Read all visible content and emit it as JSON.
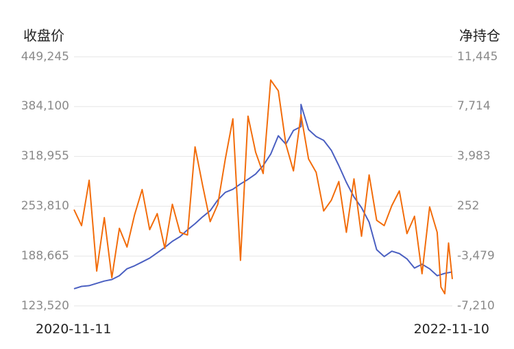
{
  "chart_data": {
    "type": "line",
    "x_start": "2020-11-11",
    "x_end": "2022-11-10",
    "left_axis": {
      "title": "收盘价",
      "ticks": [
        "449,245",
        "384,100",
        "318,955",
        "253,810",
        "188,665",
        "123,520"
      ],
      "range": [
        123520,
        449245
      ]
    },
    "right_axis": {
      "title": "净持仓",
      "ticks": [
        "11,445",
        "7,714",
        "3,983",
        "252",
        "-3,479",
        "-7,210"
      ],
      "range": [
        -7210,
        11445
      ]
    },
    "grid": true,
    "series": [
      {
        "axis": "left",
        "color": "#4a5fc1",
        "x": [
          0,
          0.02,
          0.04,
          0.06,
          0.08,
          0.1,
          0.12,
          0.14,
          0.16,
          0.18,
          0.2,
          0.22,
          0.24,
          0.26,
          0.28,
          0.3,
          0.32,
          0.34,
          0.36,
          0.38,
          0.4,
          0.42,
          0.44,
          0.46,
          0.48,
          0.5,
          0.52,
          0.54,
          0.56,
          0.58,
          0.6,
          0.6,
          0.62,
          0.64,
          0.66,
          0.68,
          0.7,
          0.72,
          0.74,
          0.76,
          0.78,
          0.8,
          0.82,
          0.84,
          0.86,
          0.88,
          0.9,
          0.92,
          0.94,
          0.96,
          0.98,
          1
        ],
        "values": [
          146000,
          149000,
          150000,
          153000,
          156000,
          158000,
          163000,
          172000,
          176000,
          181000,
          186000,
          193000,
          200000,
          208000,
          214000,
          223000,
          231000,
          240000,
          248000,
          262000,
          272000,
          276000,
          283000,
          289000,
          296000,
          307000,
          322000,
          346000,
          335000,
          353000,
          358000,
          387000,
          354000,
          345000,
          340000,
          327000,
          307000,
          285000,
          266000,
          252000,
          233000,
          197000,
          188000,
          195000,
          192000,
          185000,
          173000,
          178000,
          172000,
          163000,
          166000,
          168000
        ]
      },
      {
        "axis": "right",
        "color": "#f26c0a",
        "x": [
          0,
          0.02,
          0.04,
          0.06,
          0.08,
          0.1,
          0.12,
          0.14,
          0.16,
          0.18,
          0.2,
          0.22,
          0.24,
          0.26,
          0.28,
          0.3,
          0.32,
          0.34,
          0.36,
          0.38,
          0.4,
          0.42,
          0.44,
          0.46,
          0.48,
          0.5,
          0.52,
          0.54,
          0.56,
          0.58,
          0.6,
          0.62,
          0.64,
          0.66,
          0.68,
          0.7,
          0.72,
          0.74,
          0.76,
          0.78,
          0.8,
          0.82,
          0.84,
          0.86,
          0.88,
          0.9,
          0.92,
          0.94,
          0.96,
          0.97,
          0.98,
          0.99,
          1
        ],
        "values": [
          0,
          -1200,
          2200,
          -4600,
          -600,
          -5100,
          -1400,
          -2800,
          -400,
          1500,
          -1500,
          -300,
          -2900,
          400,
          -1700,
          -1900,
          4700,
          1800,
          -900,
          400,
          3800,
          6800,
          -3800,
          7000,
          4300,
          2700,
          9700,
          8900,
          4900,
          2900,
          7100,
          3800,
          2800,
          -100,
          700,
          2100,
          -1700,
          2300,
          -2000,
          2600,
          -800,
          -1200,
          300,
          1400,
          -1800,
          -500,
          -4800,
          200,
          -1700,
          -5800,
          -6300,
          -2500,
          -5200
        ]
      }
    ]
  }
}
